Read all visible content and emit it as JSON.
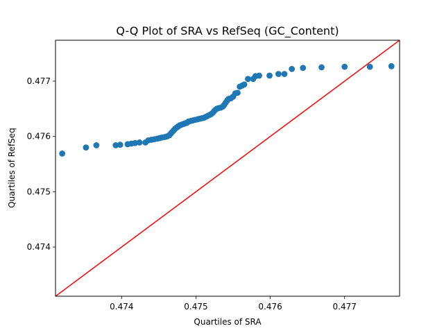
{
  "chart_data": {
    "type": "scatter",
    "title": "Q-Q Plot of SRA vs RefSeq (GC_Content)",
    "xlabel": "Quartiles of SRA",
    "ylabel": "Quartiles of RefSeq",
    "xlim": [
      0.47311,
      0.47774
    ],
    "ylim": [
      0.47311,
      0.47774
    ],
    "x_ticks": [
      0.474,
      0.475,
      0.476,
      0.477
    ],
    "x_tick_labels": [
      "0.474",
      "0.475",
      "0.476",
      "0.477"
    ],
    "y_ticks": [
      0.474,
      0.475,
      0.476,
      0.477
    ],
    "y_tick_labels": [
      "0.474",
      "0.475",
      "0.476",
      "0.477"
    ],
    "grid": false,
    "legend": "none",
    "colors": {
      "points": "#1f77b4",
      "reference_line": "#ff0000"
    },
    "reference_line": {
      "from": [
        0.47311,
        0.47311
      ],
      "to": [
        0.47774,
        0.47774
      ]
    },
    "points": [
      [
        0.4732,
        0.47569
      ],
      [
        0.47352,
        0.4758
      ],
      [
        0.47366,
        0.47584
      ],
      [
        0.47392,
        0.47584
      ],
      [
        0.47398,
        0.47585
      ],
      [
        0.47408,
        0.47586
      ],
      [
        0.47413,
        0.47587
      ],
      [
        0.47418,
        0.47588
      ],
      [
        0.47424,
        0.47589
      ],
      [
        0.47432,
        0.47589
      ],
      [
        0.47436,
        0.47593
      ],
      [
        0.4744,
        0.47594
      ],
      [
        0.47444,
        0.47595
      ],
      [
        0.47448,
        0.47596
      ],
      [
        0.47451,
        0.47597
      ],
      [
        0.47454,
        0.47598
      ],
      [
        0.47458,
        0.47599
      ],
      [
        0.47461,
        0.476
      ],
      [
        0.47464,
        0.47602
      ],
      [
        0.47466,
        0.47605
      ],
      [
        0.47468,
        0.47608
      ],
      [
        0.4747,
        0.47611
      ],
      [
        0.47472,
        0.47614
      ],
      [
        0.47474,
        0.47616
      ],
      [
        0.47476,
        0.47618
      ],
      [
        0.47478,
        0.4762
      ],
      [
        0.4748,
        0.47621
      ],
      [
        0.47482,
        0.47622
      ],
      [
        0.47484,
        0.47623
      ],
      [
        0.47486,
        0.47624
      ],
      [
        0.47488,
        0.47625
      ],
      [
        0.4749,
        0.47627
      ],
      [
        0.47493,
        0.47628
      ],
      [
        0.47496,
        0.47629
      ],
      [
        0.47499,
        0.4763
      ],
      [
        0.47502,
        0.47631
      ],
      [
        0.47505,
        0.47632
      ],
      [
        0.47508,
        0.47633
      ],
      [
        0.47511,
        0.47634
      ],
      [
        0.47514,
        0.47636
      ],
      [
        0.47517,
        0.47638
      ],
      [
        0.4752,
        0.4764
      ],
      [
        0.47522,
        0.47642
      ],
      [
        0.47524,
        0.47645
      ],
      [
        0.47526,
        0.47648
      ],
      [
        0.47528,
        0.4765
      ],
      [
        0.4753,
        0.47651
      ],
      [
        0.47533,
        0.47652
      ],
      [
        0.47536,
        0.47654
      ],
      [
        0.47538,
        0.47657
      ],
      [
        0.4754,
        0.47661
      ],
      [
        0.47542,
        0.47665
      ],
      [
        0.47544,
        0.47668
      ],
      [
        0.47547,
        0.47669
      ],
      [
        0.4755,
        0.47672
      ],
      [
        0.47553,
        0.47678
      ],
      [
        0.47556,
        0.47679
      ],
      [
        0.47559,
        0.4769
      ],
      [
        0.47562,
        0.47692
      ],
      [
        0.47565,
        0.47694
      ],
      [
        0.4757,
        0.47704
      ],
      [
        0.47577,
        0.47704
      ],
      [
        0.4758,
        0.47709
      ],
      [
        0.47585,
        0.4771
      ],
      [
        0.47599,
        0.4771
      ],
      [
        0.47611,
        0.47713
      ],
      [
        0.47619,
        0.47713
      ],
      [
        0.47629,
        0.47722
      ],
      [
        0.47644,
        0.47724
      ],
      [
        0.47669,
        0.47725
      ],
      [
        0.477,
        0.47726
      ],
      [
        0.47734,
        0.47726
      ],
      [
        0.47763,
        0.47727
      ]
    ]
  }
}
